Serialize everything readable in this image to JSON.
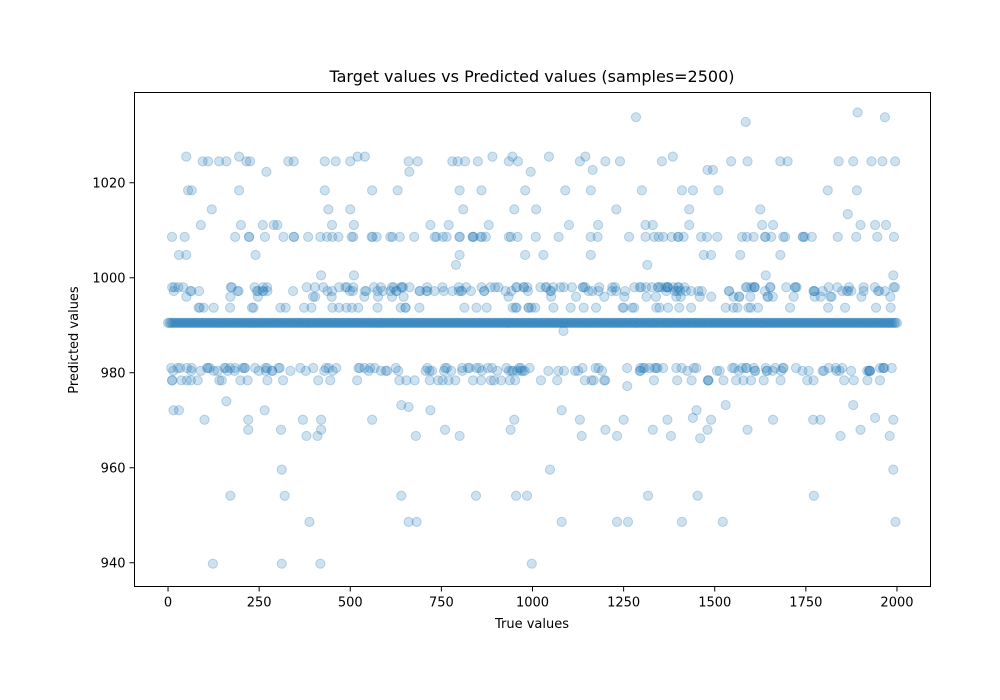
{
  "chart_data": {
    "type": "scatter",
    "title": "Target values vs Predicted values (samples=2500)",
    "xlabel": "True values",
    "ylabel": "Predicted values",
    "xlim": [
      -92,
      2092
    ],
    "ylim": [
      935,
      1039
    ],
    "xticks": [
      0,
      250,
      500,
      750,
      1000,
      1250,
      1500,
      1750,
      2000
    ],
    "yticks": [
      940,
      960,
      980,
      1000,
      1020
    ],
    "xtick_labels": [
      "0",
      "250",
      "500",
      "750",
      "1000",
      "1250",
      "1500",
      "1750",
      "2000"
    ],
    "ytick_labels": [
      "940",
      "960",
      "980",
      "1000",
      "1020"
    ],
    "grid": false,
    "marker_color": "#1f77b4",
    "marker_alpha": 0.22,
    "band_value": 990.5,
    "x_range": [
      0,
      2000
    ],
    "outliers": [
      {
        "x": 123,
        "y": 939.8
      },
      {
        "x": 312,
        "y": 939.8
      },
      {
        "x": 418,
        "y": 939.8
      },
      {
        "x": 998,
        "y": 939.8
      },
      {
        "x": 388,
        "y": 948.6
      },
      {
        "x": 660,
        "y": 948.6
      },
      {
        "x": 682,
        "y": 948.6
      },
      {
        "x": 1080,
        "y": 948.6
      },
      {
        "x": 1232,
        "y": 948.6
      },
      {
        "x": 1262,
        "y": 948.6
      },
      {
        "x": 1410,
        "y": 948.6
      },
      {
        "x": 1522,
        "y": 948.6
      },
      {
        "x": 1996,
        "y": 948.6
      },
      {
        "x": 171,
        "y": 954.1
      },
      {
        "x": 320,
        "y": 954.1
      },
      {
        "x": 640,
        "y": 954.1
      },
      {
        "x": 845,
        "y": 954.1
      },
      {
        "x": 955,
        "y": 954.1
      },
      {
        "x": 985,
        "y": 954.1
      },
      {
        "x": 1317,
        "y": 954.1
      },
      {
        "x": 1453,
        "y": 954.1
      },
      {
        "x": 1772,
        "y": 954.1
      },
      {
        "x": 312,
        "y": 959.6
      },
      {
        "x": 1048,
        "y": 959.6
      },
      {
        "x": 1990,
        "y": 959.6
      },
      {
        "x": 15,
        "y": 972.1
      },
      {
        "x": 30,
        "y": 972.1
      },
      {
        "x": 265,
        "y": 972.1
      },
      {
        "x": 640,
        "y": 973.2
      },
      {
        "x": 1450,
        "y": 972.1
      },
      {
        "x": 1530,
        "y": 973.2
      },
      {
        "x": 1770,
        "y": 970.1
      },
      {
        "x": 1880,
        "y": 973.2
      },
      {
        "x": 1990,
        "y": 970.1
      },
      {
        "x": 100,
        "y": 970.1
      },
      {
        "x": 220,
        "y": 970.1
      },
      {
        "x": 370,
        "y": 970.1
      },
      {
        "x": 420,
        "y": 970.1
      },
      {
        "x": 560,
        "y": 970.1
      },
      {
        "x": 720,
        "y": 972.1
      },
      {
        "x": 950,
        "y": 970.1
      },
      {
        "x": 1080,
        "y": 972.1
      },
      {
        "x": 1130,
        "y": 970.1
      },
      {
        "x": 1250,
        "y": 970.1
      },
      {
        "x": 1370,
        "y": 970.1
      },
      {
        "x": 1490,
        "y": 970.1
      },
      {
        "x": 1660,
        "y": 970.1
      },
      {
        "x": 1790,
        "y": 970.1
      },
      {
        "x": 220,
        "y": 968.0
      },
      {
        "x": 310,
        "y": 968.0
      },
      {
        "x": 420,
        "y": 968.0
      },
      {
        "x": 760,
        "y": 968.0
      },
      {
        "x": 940,
        "y": 968.0
      },
      {
        "x": 1200,
        "y": 968.0
      },
      {
        "x": 1330,
        "y": 968.0
      },
      {
        "x": 1480,
        "y": 968.0
      },
      {
        "x": 1590,
        "y": 968.0
      },
      {
        "x": 1900,
        "y": 968.0
      },
      {
        "x": 380,
        "y": 966.7
      },
      {
        "x": 410,
        "y": 966.7
      },
      {
        "x": 680,
        "y": 966.7
      },
      {
        "x": 800,
        "y": 966.7
      },
      {
        "x": 1135,
        "y": 966.7
      },
      {
        "x": 1232,
        "y": 966.7
      },
      {
        "x": 1380,
        "y": 966.7
      },
      {
        "x": 1460,
        "y": 966.2
      },
      {
        "x": 1845,
        "y": 966.7
      },
      {
        "x": 1980,
        "y": 966.7
      },
      {
        "x": 160,
        "y": 974.0
      },
      {
        "x": 660,
        "y": 972.8
      },
      {
        "x": 1440,
        "y": 970.5
      },
      {
        "x": 1940,
        "y": 970.5
      },
      {
        "x": 50,
        "y": 1025.5
      },
      {
        "x": 95,
        "y": 1024.5
      },
      {
        "x": 110,
        "y": 1024.5
      },
      {
        "x": 140,
        "y": 1024.5
      },
      {
        "x": 160,
        "y": 1024.5
      },
      {
        "x": 195,
        "y": 1025.5
      },
      {
        "x": 215,
        "y": 1024.5
      },
      {
        "x": 225,
        "y": 1024.5
      },
      {
        "x": 330,
        "y": 1024.5
      },
      {
        "x": 345,
        "y": 1024.5
      },
      {
        "x": 430,
        "y": 1024.5
      },
      {
        "x": 460,
        "y": 1024.5
      },
      {
        "x": 500,
        "y": 1024.5
      },
      {
        "x": 520,
        "y": 1025.5
      },
      {
        "x": 540,
        "y": 1025.5
      },
      {
        "x": 660,
        "y": 1024.5
      },
      {
        "x": 685,
        "y": 1024.5
      },
      {
        "x": 780,
        "y": 1024.5
      },
      {
        "x": 795,
        "y": 1024.5
      },
      {
        "x": 815,
        "y": 1024.5
      },
      {
        "x": 850,
        "y": 1024.5
      },
      {
        "x": 890,
        "y": 1025.5
      },
      {
        "x": 935,
        "y": 1024.5
      },
      {
        "x": 945,
        "y": 1025.5
      },
      {
        "x": 960,
        "y": 1024.5
      },
      {
        "x": 1045,
        "y": 1025.5
      },
      {
        "x": 1130,
        "y": 1024.5
      },
      {
        "x": 1145,
        "y": 1025.5
      },
      {
        "x": 1200,
        "y": 1024.5
      },
      {
        "x": 1240,
        "y": 1024.5
      },
      {
        "x": 1355,
        "y": 1024.5
      },
      {
        "x": 1385,
        "y": 1025.5
      },
      {
        "x": 1480,
        "y": 1022.7
      },
      {
        "x": 1495,
        "y": 1022.7
      },
      {
        "x": 1545,
        "y": 1024.5
      },
      {
        "x": 1590,
        "y": 1024.5
      },
      {
        "x": 1680,
        "y": 1024.5
      },
      {
        "x": 1700,
        "y": 1024.5
      },
      {
        "x": 1840,
        "y": 1024.5
      },
      {
        "x": 1880,
        "y": 1024.5
      },
      {
        "x": 1930,
        "y": 1024.5
      },
      {
        "x": 1960,
        "y": 1024.5
      },
      {
        "x": 1995,
        "y": 1024.5
      },
      {
        "x": 270,
        "y": 1022.3
      },
      {
        "x": 662,
        "y": 1022.3
      },
      {
        "x": 995,
        "y": 1022.3
      },
      {
        "x": 1165,
        "y": 1022.7
      },
      {
        "x": 1284,
        "y": 1033.8
      },
      {
        "x": 1585,
        "y": 1032.8
      },
      {
        "x": 1892,
        "y": 1034.8
      },
      {
        "x": 1967,
        "y": 1033.8
      },
      {
        "x": 55,
        "y": 1018.4
      },
      {
        "x": 65,
        "y": 1018.4
      },
      {
        "x": 195,
        "y": 1018.4
      },
      {
        "x": 430,
        "y": 1018.4
      },
      {
        "x": 560,
        "y": 1018.4
      },
      {
        "x": 630,
        "y": 1018.4
      },
      {
        "x": 800,
        "y": 1018.4
      },
      {
        "x": 860,
        "y": 1018.4
      },
      {
        "x": 980,
        "y": 1018.4
      },
      {
        "x": 1090,
        "y": 1018.4
      },
      {
        "x": 1160,
        "y": 1018.4
      },
      {
        "x": 1300,
        "y": 1018.4
      },
      {
        "x": 1410,
        "y": 1018.4
      },
      {
        "x": 1440,
        "y": 1018.4
      },
      {
        "x": 1510,
        "y": 1018.4
      },
      {
        "x": 1810,
        "y": 1018.4
      },
      {
        "x": 1890,
        "y": 1018.4
      },
      {
        "x": 120,
        "y": 1014.4
      },
      {
        "x": 440,
        "y": 1014.4
      },
      {
        "x": 500,
        "y": 1014.4
      },
      {
        "x": 810,
        "y": 1014.4
      },
      {
        "x": 950,
        "y": 1014.4
      },
      {
        "x": 1010,
        "y": 1014.4
      },
      {
        "x": 1230,
        "y": 1014.4
      },
      {
        "x": 1430,
        "y": 1014.4
      },
      {
        "x": 1625,
        "y": 1014.4
      },
      {
        "x": 1865,
        "y": 1013.4
      },
      {
        "x": 90,
        "y": 1011.1
      },
      {
        "x": 200,
        "y": 1011.1
      },
      {
        "x": 260,
        "y": 1011.1
      },
      {
        "x": 290,
        "y": 1011.1
      },
      {
        "x": 300,
        "y": 1011.1
      },
      {
        "x": 450,
        "y": 1011.1
      },
      {
        "x": 510,
        "y": 1011.1
      },
      {
        "x": 720,
        "y": 1011.1
      },
      {
        "x": 770,
        "y": 1011.1
      },
      {
        "x": 880,
        "y": 1011.1
      },
      {
        "x": 1100,
        "y": 1011.1
      },
      {
        "x": 1180,
        "y": 1011.1
      },
      {
        "x": 1310,
        "y": 1011.1
      },
      {
        "x": 1330,
        "y": 1011.1
      },
      {
        "x": 1430,
        "y": 1011.1
      },
      {
        "x": 1630,
        "y": 1011.1
      },
      {
        "x": 1660,
        "y": 1011.1
      },
      {
        "x": 1900,
        "y": 1011.1
      },
      {
        "x": 1940,
        "y": 1011.1
      },
      {
        "x": 1970,
        "y": 1011.1
      },
      {
        "x": 30,
        "y": 1004.8
      },
      {
        "x": 50,
        "y": 1004.8
      },
      {
        "x": 240,
        "y": 1004.8
      },
      {
        "x": 800,
        "y": 1004.8
      },
      {
        "x": 980,
        "y": 1004.8
      },
      {
        "x": 1030,
        "y": 1004.8
      },
      {
        "x": 1160,
        "y": 1004.8
      },
      {
        "x": 1470,
        "y": 1004.8
      },
      {
        "x": 1490,
        "y": 1004.8
      },
      {
        "x": 1570,
        "y": 1004.8
      },
      {
        "x": 1680,
        "y": 1004.8
      },
      {
        "x": 1315,
        "y": 1002.7
      },
      {
        "x": 790,
        "y": 1002.7
      },
      {
        "x": 1990,
        "y": 1000.5
      },
      {
        "x": 1640,
        "y": 1000.5
      },
      {
        "x": 420,
        "y": 1000.5
      },
      {
        "x": 510,
        "y": 1000.5
      },
      {
        "x": 1260,
        "y": 977.2
      },
      {
        "x": 1085,
        "y": 988.8
      }
    ],
    "levels": [
      1008.6,
      998.0,
      997.2,
      996.0,
      993.7,
      981.0,
      980.4,
      978.4
    ],
    "level_counts": [
      70,
      85,
      70,
      35,
      55,
      80,
      65,
      55
    ]
  }
}
